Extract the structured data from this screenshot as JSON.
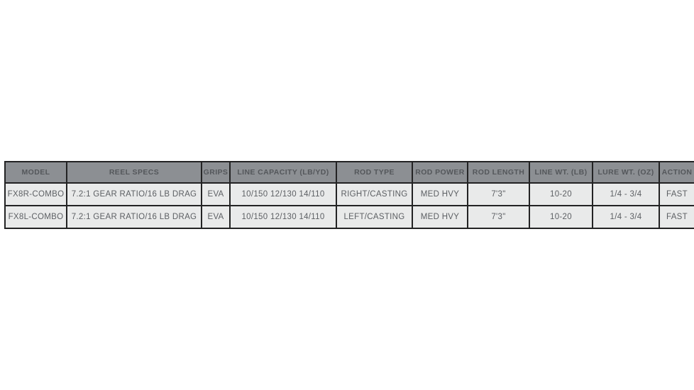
{
  "colors": {
    "page_background": "#ffffff",
    "header_background": "#8c8f93",
    "header_text": "#54575b",
    "row_background": "#e9eaea",
    "row_text": "#5c5f63",
    "border": "#232324"
  },
  "table": {
    "columns": [
      {
        "label": "MODEL"
      },
      {
        "label": "REEL SPECS"
      },
      {
        "label": "GRIPS"
      },
      {
        "label": "LINE CAPACITY (LB/YD)"
      },
      {
        "label": "ROD TYPE"
      },
      {
        "label": "ROD POWER"
      },
      {
        "label": "ROD LENGTH"
      },
      {
        "label": "LINE WT. (LB)"
      },
      {
        "label": "LURE WT. (OZ)"
      },
      {
        "label": "ACTION"
      }
    ],
    "rows": [
      {
        "cells": [
          "FX8R-COMBO",
          "7.2:1 GEAR RATIO/16 LB DRAG",
          "EVA",
          "10/150 12/130 14/110",
          "RIGHT/CASTING",
          "MED HVY",
          "7'3\"",
          "10-20",
          "1/4 - 3/4",
          "FAST"
        ]
      },
      {
        "cells": [
          "FX8L-COMBO",
          "7.2:1 GEAR RATIO/16 LB DRAG",
          "EVA",
          "10/150 12/130 14/110",
          "LEFT/CASTING",
          "MED HVY",
          "7'3\"",
          "10-20",
          "1/4 - 3/4",
          "FAST"
        ]
      }
    ]
  }
}
